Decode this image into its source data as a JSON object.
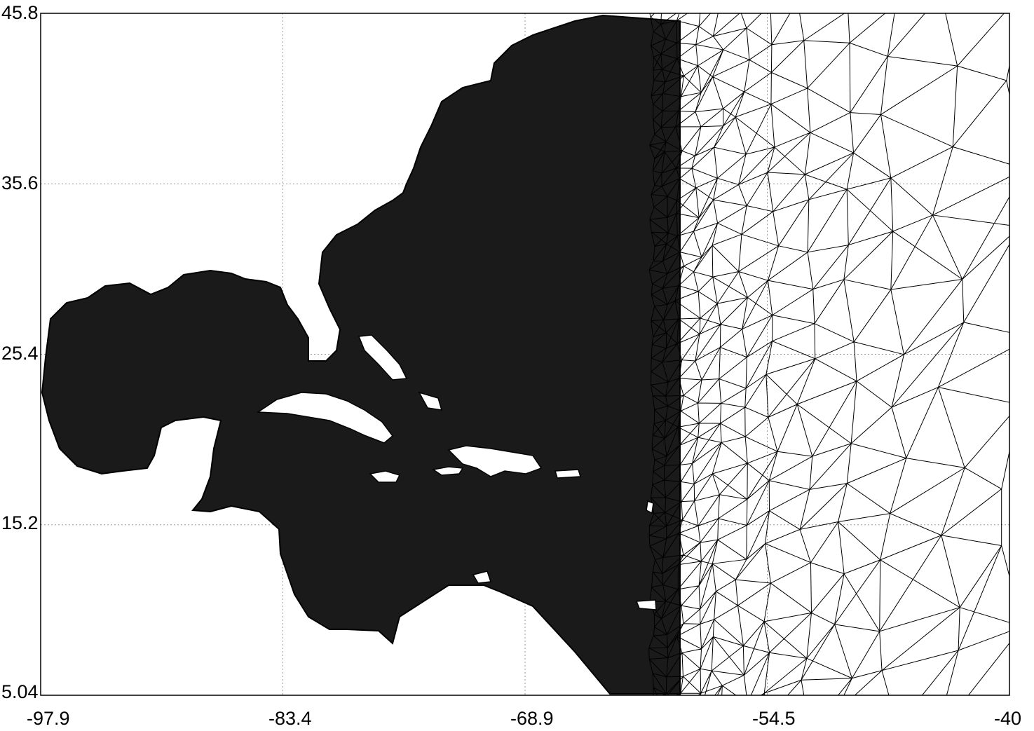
{
  "chart_data": {
    "type": "map",
    "title": "",
    "xlabel": "",
    "ylabel": "",
    "xlim": [
      -97.9,
      -40
    ],
    "ylim": [
      5.04,
      45.8
    ],
    "x_ticks": [
      "-97.9",
      "-83.4",
      "-68.9",
      "-54.5",
      "-40"
    ],
    "y_ticks": [
      "45.8",
      "35.6",
      "25.4",
      "15.2",
      "5.04"
    ],
    "grid": true,
    "description_style": "triangular finite-element mesh, dense near coastlines and coarse offshore",
    "colors": {
      "mesh": "#000000",
      "grid": "#9a9a9a",
      "background": "#ffffff"
    }
  }
}
